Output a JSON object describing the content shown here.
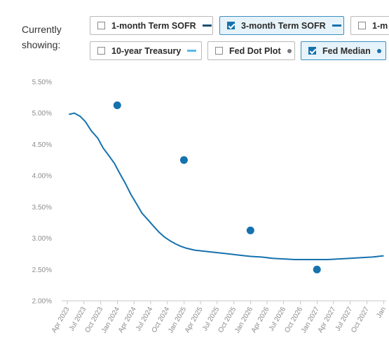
{
  "controls": {
    "showing_label": "Currently showing:",
    "toggles": [
      {
        "label": "1-month Term SOFR",
        "checked": false,
        "color": "#1d4f73",
        "marker": "line"
      },
      {
        "label": "3-month Term SOFR",
        "checked": true,
        "color": "#1672ad",
        "marker": "line"
      },
      {
        "label": "1-m",
        "checked": false,
        "color": "",
        "marker": "none"
      },
      {
        "label": "10-year Treasury",
        "checked": false,
        "color": "#5bb8e8",
        "marker": "line"
      },
      {
        "label": "Fed Dot Plot",
        "checked": false,
        "color": "#777777",
        "marker": "dot"
      },
      {
        "label": "Fed Median",
        "checked": true,
        "color": "#1672ad",
        "marker": "dot"
      }
    ]
  },
  "chart_data": {
    "type": "line",
    "ylim": [
      2.0,
      5.5
    ],
    "y_ticks": [
      {
        "value": 5.5,
        "label": "5.50%"
      },
      {
        "value": 5.0,
        "label": "5.00%"
      },
      {
        "value": 4.5,
        "label": "4.50%"
      },
      {
        "value": 4.0,
        "label": "4.00%"
      },
      {
        "value": 3.5,
        "label": "3.50%"
      },
      {
        "value": 3.0,
        "label": "3.00%"
      },
      {
        "value": 2.5,
        "label": "2.50%"
      },
      {
        "value": 2.0,
        "label": "2.00%"
      }
    ],
    "x_ticks": [
      {
        "date": "2023-04-01",
        "label": "Apr 2023"
      },
      {
        "date": "2023-07-01",
        "label": "Jul 2023"
      },
      {
        "date": "2023-10-01",
        "label": "Oct 2023"
      },
      {
        "date": "2024-01-01",
        "label": "Jan 2024"
      },
      {
        "date": "2024-04-01",
        "label": "Apr 2024"
      },
      {
        "date": "2024-07-01",
        "label": "Jul 2024"
      },
      {
        "date": "2024-10-01",
        "label": "Oct 2024"
      },
      {
        "date": "2025-01-01",
        "label": "Jan 2025"
      },
      {
        "date": "2025-04-01",
        "label": "Apr 2025"
      },
      {
        "date": "2025-07-01",
        "label": "Jul 2025"
      },
      {
        "date": "2025-10-01",
        "label": "Oct 2025"
      },
      {
        "date": "2026-01-01",
        "label": "Jan 2026"
      },
      {
        "date": "2026-04-01",
        "label": "Apr 2026"
      },
      {
        "date": "2026-07-01",
        "label": "Jul 2026"
      },
      {
        "date": "2026-10-01",
        "label": "Oct 2026"
      },
      {
        "date": "2027-01-01",
        "label": "Jan 2027"
      },
      {
        "date": "2027-04-01",
        "label": "Apr 2027"
      },
      {
        "date": "2027-07-01",
        "label": "Jul 2027"
      },
      {
        "date": "2027-10-01",
        "label": "Oct 2027"
      },
      {
        "date": "2028-01-01",
        "label": "Jan"
      }
    ],
    "series": [
      {
        "name": "3-month Term SOFR",
        "color": "#1672ad",
        "kind": "line",
        "points": [
          [
            "2023-04-10",
            4.98
          ],
          [
            "2023-05-10",
            5.0
          ],
          [
            "2023-06-10",
            4.95
          ],
          [
            "2023-07-10",
            4.86
          ],
          [
            "2023-08-10",
            4.72
          ],
          [
            "2023-09-15",
            4.6
          ],
          [
            "2023-10-15",
            4.44
          ],
          [
            "2023-11-15",
            4.32
          ],
          [
            "2023-12-15",
            4.2
          ],
          [
            "2024-01-15",
            4.03
          ],
          [
            "2024-02-15",
            3.87
          ],
          [
            "2024-03-15",
            3.7
          ],
          [
            "2024-04-15",
            3.55
          ],
          [
            "2024-05-15",
            3.4
          ],
          [
            "2024-06-15",
            3.3
          ],
          [
            "2024-07-15",
            3.2
          ],
          [
            "2024-08-15",
            3.1
          ],
          [
            "2024-09-15",
            3.02
          ],
          [
            "2024-10-15",
            2.96
          ],
          [
            "2024-11-15",
            2.91
          ],
          [
            "2024-12-15",
            2.87
          ],
          [
            "2025-01-15",
            2.84
          ],
          [
            "2025-03-01",
            2.81
          ],
          [
            "2025-05-01",
            2.79
          ],
          [
            "2025-07-01",
            2.77
          ],
          [
            "2025-09-01",
            2.75
          ],
          [
            "2025-11-01",
            2.73
          ],
          [
            "2026-01-01",
            2.71
          ],
          [
            "2026-03-01",
            2.7
          ],
          [
            "2026-05-01",
            2.68
          ],
          [
            "2026-07-01",
            2.67
          ],
          [
            "2026-09-01",
            2.66
          ],
          [
            "2026-11-01",
            2.66
          ],
          [
            "2027-01-01",
            2.66
          ],
          [
            "2027-03-01",
            2.66
          ],
          [
            "2027-05-01",
            2.67
          ],
          [
            "2027-07-01",
            2.68
          ],
          [
            "2027-09-01",
            2.69
          ],
          [
            "2027-11-01",
            2.7
          ],
          [
            "2028-01-01",
            2.72
          ]
        ]
      },
      {
        "name": "Fed Median",
        "color": "#1672ad",
        "kind": "dots",
        "points": [
          [
            "2023-12-31",
            5.125
          ],
          [
            "2024-12-31",
            4.25
          ],
          [
            "2025-12-31",
            3.125
          ],
          [
            "2026-12-31",
            2.5
          ]
        ]
      }
    ]
  }
}
